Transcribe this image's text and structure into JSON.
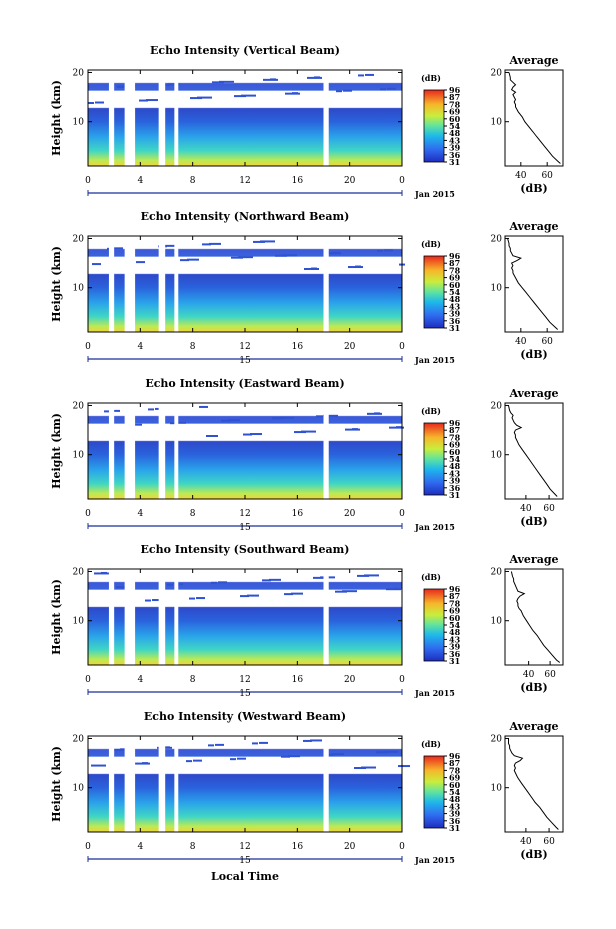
{
  "figure": {
    "xlabel": "Local Time",
    "date_label": "Jan 2015",
    "colorbar_unit": "(dB)",
    "colorbar_ticks": [
      "96",
      "87",
      "78",
      "69",
      "60",
      "54",
      "48",
      "43",
      "39",
      "36",
      "31"
    ],
    "average_title": "Average",
    "average_xlabel": "(dB)"
  },
  "chart_data": [
    {
      "type": "heatmap",
      "title": "Echo Intensity (Vertical Beam)",
      "ylabel": "Height (km)",
      "x_ticks": [
        "0",
        "4",
        "8",
        "12",
        "16",
        "20",
        "0"
      ],
      "x_range": [
        0,
        24
      ],
      "y_ticks": [
        "10",
        "20"
      ],
      "y_range": [
        1,
        20.5
      ],
      "value_range_db": [
        31,
        96
      ],
      "day_label": "",
      "data_gaps_hours": [
        [
          1.6,
          2.0
        ],
        [
          2.8,
          3.6
        ],
        [
          5.4,
          5.9
        ],
        [
          6.6,
          6.9
        ],
        [
          18.0,
          18.4
        ]
      ],
      "average_profile": {
        "x_ticks": [
          "40",
          "60"
        ],
        "x_range": [
          28,
          72
        ],
        "y_ticks": [
          "10",
          "20"
        ],
        "y_range": [
          1,
          20.5
        ],
        "heights_km": [
          1.5,
          2,
          3,
          4,
          5,
          6,
          7,
          8,
          9,
          10,
          11,
          12,
          12.5,
          13,
          13.5,
          14,
          14.5,
          15,
          15.5,
          16,
          16.5,
          17,
          17.5,
          18,
          18.5,
          19,
          20
        ],
        "values_db": [
          70,
          68,
          64,
          61,
          58,
          55,
          52,
          49,
          46,
          43,
          41,
          38,
          37,
          36,
          36,
          35,
          36,
          35,
          34,
          36,
          33,
          34,
          36,
          34,
          32,
          32,
          31
        ]
      }
    },
    {
      "type": "heatmap",
      "title": "Echo Intensity (Northward Beam)",
      "ylabel": "Height (km)",
      "x_ticks": [
        "0",
        "4",
        "8",
        "12",
        "16",
        "20",
        "0"
      ],
      "x_range": [
        0,
        24
      ],
      "y_ticks": [
        "10",
        "20"
      ],
      "y_range": [
        1,
        20.5
      ],
      "value_range_db": [
        31,
        96
      ],
      "day_label": "15",
      "data_gaps_hours": [
        [
          1.6,
          2.0
        ],
        [
          2.8,
          3.6
        ],
        [
          5.4,
          5.9
        ],
        [
          6.6,
          6.9
        ],
        [
          18.0,
          18.4
        ]
      ],
      "average_profile": {
        "x_ticks": [
          "40",
          "60"
        ],
        "x_range": [
          28,
          72
        ],
        "y_ticks": [
          "10",
          "20"
        ],
        "y_range": [
          1,
          20.5
        ],
        "heights_km": [
          1.5,
          2,
          3,
          4,
          5,
          6,
          7,
          8,
          9,
          10,
          11,
          12,
          12.5,
          13,
          13.5,
          14,
          14.5,
          15,
          15.5,
          16,
          16.5,
          17,
          17.5,
          18,
          18.5,
          19,
          20
        ],
        "values_db": [
          68,
          66,
          62,
          59,
          56,
          53,
          50,
          47,
          44,
          41,
          38,
          36,
          35,
          34,
          34,
          33,
          34,
          33,
          37,
          40,
          34,
          33,
          32,
          32,
          31,
          31,
          30
        ]
      }
    },
    {
      "type": "heatmap",
      "title": "Echo Intensity (Eastward Beam)",
      "ylabel": "Height (km)",
      "x_ticks": [
        "0",
        "4",
        "8",
        "12",
        "16",
        "20",
        "0"
      ],
      "x_range": [
        0,
        24
      ],
      "y_ticks": [
        "10",
        "20"
      ],
      "y_range": [
        1,
        20.5
      ],
      "value_range_db": [
        31,
        96
      ],
      "day_label": "15",
      "data_gaps_hours": [
        [
          1.6,
          2.0
        ],
        [
          2.8,
          3.6
        ],
        [
          5.4,
          5.9
        ],
        [
          6.6,
          6.9
        ],
        [
          18.0,
          18.4
        ]
      ],
      "average_profile": {
        "x_ticks": [
          "40",
          "60"
        ],
        "x_range": [
          22,
          72
        ],
        "y_ticks": [
          "10",
          "20"
        ],
        "y_range": [
          1,
          20.5
        ],
        "heights_km": [
          1.5,
          2,
          3,
          4,
          5,
          6,
          7,
          8,
          9,
          10,
          11,
          12,
          12.5,
          13,
          13.5,
          14,
          14.5,
          15,
          15.5,
          16,
          16.5,
          17,
          17.5,
          18,
          18.5,
          19,
          20
        ],
        "values_db": [
          67,
          65,
          61,
          58,
          55,
          52,
          49,
          46,
          43,
          40,
          37,
          34,
          33,
          32,
          31,
          31,
          30,
          31,
          36,
          32,
          30,
          29,
          28,
          29,
          27,
          26,
          25
        ]
      }
    },
    {
      "type": "heatmap",
      "title": "Echo Intensity (Southward Beam)",
      "ylabel": "Height (km)",
      "x_ticks": [
        "0",
        "4",
        "8",
        "12",
        "16",
        "20",
        "0"
      ],
      "x_range": [
        0,
        24
      ],
      "y_ticks": [
        "10",
        "20"
      ],
      "y_range": [
        1,
        20.5
      ],
      "value_range_db": [
        31,
        96
      ],
      "day_label": "15",
      "data_gaps_hours": [
        [
          1.6,
          2.0
        ],
        [
          2.8,
          3.6
        ],
        [
          5.4,
          5.9
        ],
        [
          6.6,
          6.9
        ],
        [
          18.0,
          18.4
        ]
      ],
      "average_profile": {
        "x_ticks": [
          "40",
          "60"
        ],
        "x_range": [
          18,
          72
        ],
        "y_ticks": [
          "10",
          "20"
        ],
        "y_range": [
          1,
          20.5
        ],
        "heights_km": [
          1.5,
          2,
          3,
          4,
          5,
          6,
          7,
          8,
          9,
          10,
          11,
          12,
          12.5,
          13,
          13.5,
          14,
          14.5,
          15,
          15.5,
          16,
          16.5,
          17,
          17.5,
          18,
          18.5,
          19,
          20
        ],
        "values_db": [
          69,
          66,
          62,
          58,
          54,
          51,
          48,
          44,
          41,
          38,
          35,
          33,
          31,
          30,
          30,
          29,
          30,
          32,
          36,
          30,
          29,
          28,
          27,
          26,
          26,
          25,
          24
        ]
      }
    },
    {
      "type": "heatmap",
      "title": "Echo Intensity (Westward Beam)",
      "ylabel": "Height (km)",
      "x_ticks": [
        "0",
        "4",
        "8",
        "12",
        "16",
        "20",
        "0"
      ],
      "x_range": [
        0,
        24
      ],
      "y_ticks": [
        "10",
        "20"
      ],
      "y_range": [
        1,
        20.5
      ],
      "value_range_db": [
        31,
        96
      ],
      "day_label": "15",
      "data_gaps_hours": [
        [
          1.6,
          2.0
        ],
        [
          2.8,
          3.6
        ],
        [
          5.4,
          5.9
        ],
        [
          6.6,
          6.9
        ],
        [
          18.0,
          18.4
        ]
      ],
      "average_profile": {
        "x_ticks": [
          "40",
          "60"
        ],
        "x_range": [
          22,
          72
        ],
        "y_ticks": [
          "10",
          "20"
        ],
        "y_range": [
          1,
          20.5
        ],
        "heights_km": [
          1.5,
          2,
          3,
          4,
          5,
          6,
          7,
          8,
          9,
          10,
          11,
          12,
          12.5,
          13,
          13.5,
          14,
          14.5,
          15,
          15.5,
          16,
          16.5,
          17,
          17.5,
          18,
          18.5,
          19,
          20
        ],
        "values_db": [
          68,
          66,
          62,
          58,
          55,
          52,
          48,
          45,
          42,
          39,
          36,
          33,
          32,
          31,
          30,
          31,
          30,
          31,
          35,
          37,
          30,
          28,
          27,
          26,
          26,
          25,
          25
        ]
      }
    }
  ]
}
